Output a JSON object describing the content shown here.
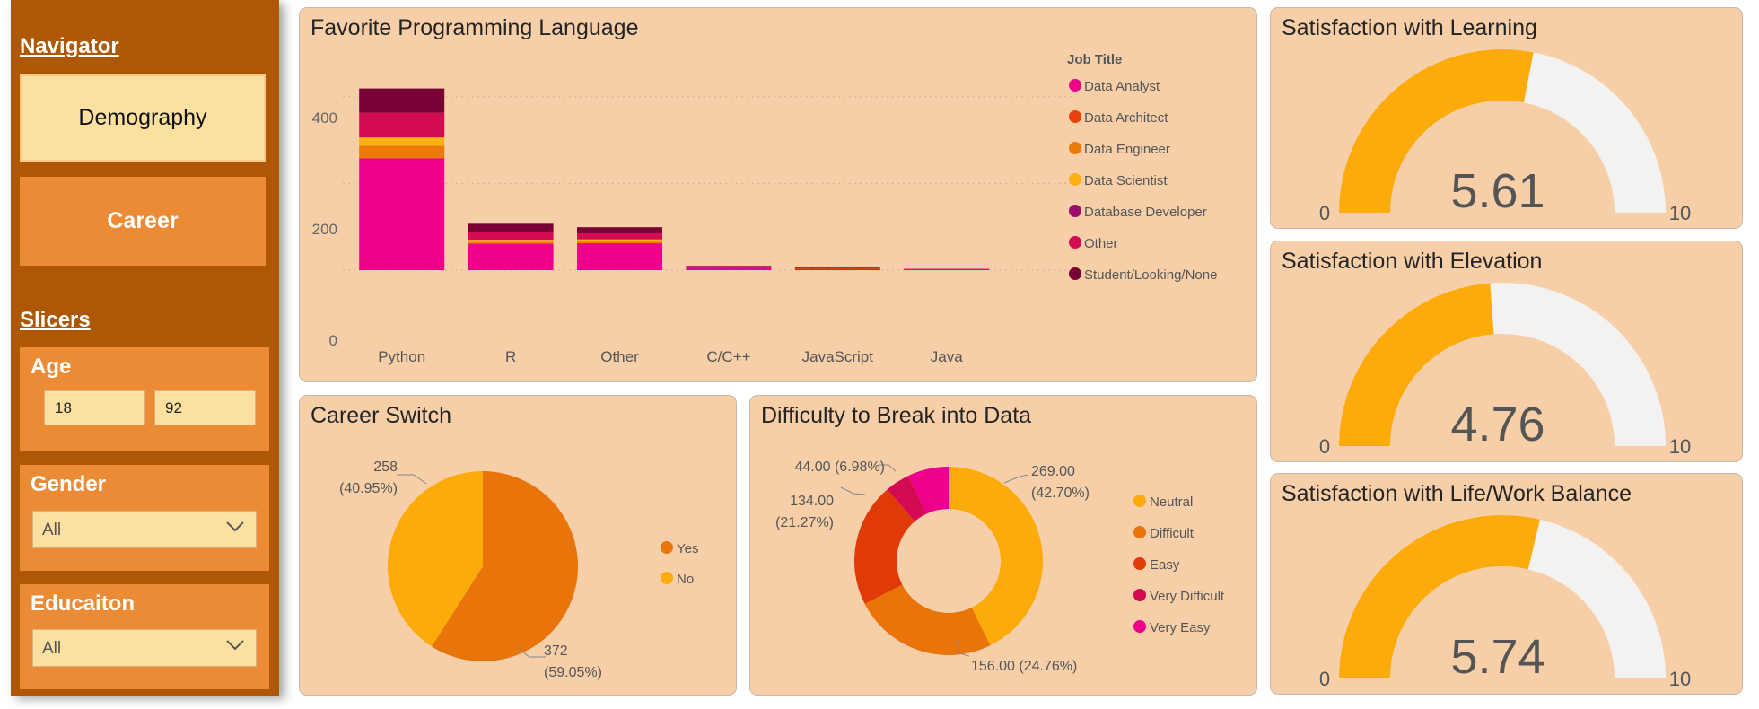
{
  "navigator": {
    "heading": "Navigator",
    "buttons": [
      {
        "label": "Demography"
      },
      {
        "label": "Career"
      }
    ]
  },
  "slicers": {
    "heading": "Slicers",
    "age": {
      "title": "Age",
      "min": "18",
      "max": "92"
    },
    "gender": {
      "title": "Gender",
      "value": "All"
    },
    "education": {
      "title": "Educaiton",
      "value": "All"
    }
  },
  "colors": {
    "Data Analyst": "#ec008c",
    "Data Architect": "#e8400b",
    "Data Engineer": "#ec7a08",
    "Data Scientist": "#fdb012",
    "Database Developer": "#9c0f6a",
    "Other": "#d40a52",
    "Student/Looking/None": "#790035",
    "gauge_fill": "#fdaa0b",
    "gauge_track": "#f3f2f1"
  },
  "favorite_language": {
    "title": "Favorite Programming Language",
    "legend_title": "Job Title",
    "y_ticks": [
      "400",
      "200",
      "0"
    ]
  },
  "career_switch": {
    "title": "Career Switch",
    "labels": {
      "no_count": "258",
      "no_pct": "(40.95%)",
      "yes_count": "372",
      "yes_pct": "(59.05%)"
    },
    "legend": [
      "Yes",
      "No"
    ]
  },
  "difficulty": {
    "title": "Difficulty to Break into Data",
    "labels": {
      "neutral": [
        "269.00",
        "(42.70%)"
      ],
      "difficult": [
        "156.00 (24.76%)"
      ],
      "easy": [
        "134.00",
        "(21.27%)"
      ],
      "very_easy": [
        "44.00 (6.98%)"
      ]
    },
    "legend": [
      "Neutral",
      "Difficult",
      "Easy",
      "Very Difficult",
      "Very Easy"
    ]
  },
  "gauges": [
    {
      "title": "Satisfaction with Learning",
      "value": "5.61",
      "min": "0",
      "max": "10"
    },
    {
      "title": "Satisfaction with Elevation",
      "value": "4.76",
      "min": "0",
      "max": "10"
    },
    {
      "title": "Satisfaction with Life/Work Balance",
      "value": "5.74",
      "min": "0",
      "max": "10"
    }
  ],
  "chart_data": [
    {
      "type": "bar",
      "stacked": true,
      "title": "Favorite Programming Language",
      "legend_title": "Job Title",
      "legend_placement": "right",
      "categories": [
        "Python",
        "R",
        "Other",
        "C/C++",
        "JavaScript",
        "Java"
      ],
      "series": [
        {
          "name": "Data Analyst",
          "values": [
            258,
            61,
            62,
            7,
            2,
            2
          ]
        },
        {
          "name": "Data Architect",
          "values": [
            0,
            0,
            0,
            0,
            2,
            0
          ]
        },
        {
          "name": "Data Engineer",
          "values": [
            29,
            4,
            4,
            0,
            0,
            0
          ]
        },
        {
          "name": "Data Scientist",
          "values": [
            19,
            5,
            5,
            1,
            0,
            0
          ]
        },
        {
          "name": "Database Developer",
          "values": [
            0,
            0,
            0,
            0,
            0,
            0
          ]
        },
        {
          "name": "Other",
          "values": [
            57,
            17,
            14,
            1,
            1,
            1
          ]
        },
        {
          "name": "Student/Looking/None",
          "values": [
            56,
            20,
            14,
            1,
            1,
            0
          ]
        }
      ],
      "y_ticks": [
        0,
        200,
        400
      ],
      "ylim": [
        0,
        430
      ],
      "grid": true
    },
    {
      "type": "pie",
      "title": "Career Switch",
      "legend_placement": "right",
      "slices": [
        {
          "name": "Yes",
          "value": 372,
          "percent": 59.05,
          "color": "#e8740a"
        },
        {
          "name": "No",
          "value": 258,
          "percent": 40.95,
          "color": "#fdaa0b"
        }
      ]
    },
    {
      "type": "pie",
      "donut": true,
      "title": "Difficulty to Break into Data",
      "legend_placement": "right",
      "slices": [
        {
          "name": "Neutral",
          "value": 269.0,
          "percent": 42.7,
          "color": "#fdaa0b"
        },
        {
          "name": "Difficult",
          "value": 156.0,
          "percent": 24.76,
          "color": "#e8740a"
        },
        {
          "name": "Easy",
          "value": 134.0,
          "percent": 21.27,
          "color": "#df3a08"
        },
        {
          "name": "Very Difficult",
          "value": 27.0,
          "percent": 4.29,
          "color": "#d40a52"
        },
        {
          "name": "Very Easy",
          "value": 44.0,
          "percent": 6.98,
          "color": "#ec008c"
        }
      ]
    },
    {
      "type": "gauge",
      "title": "Satisfaction with Learning",
      "value": 5.61,
      "min": 0,
      "max": 10
    },
    {
      "type": "gauge",
      "title": "Satisfaction with Elevation",
      "value": 4.76,
      "min": 0,
      "max": 10
    },
    {
      "type": "gauge",
      "title": "Satisfaction with Life/Work Balance",
      "value": 5.74,
      "min": 0,
      "max": 10
    }
  ]
}
